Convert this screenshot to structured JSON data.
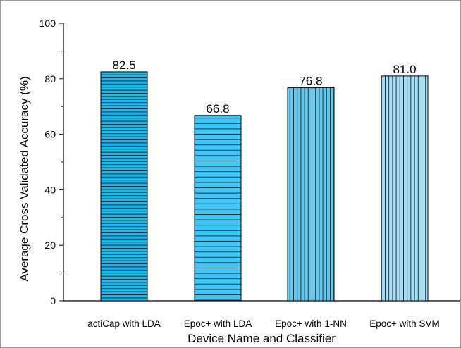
{
  "chart_data": {
    "type": "bar",
    "categories": [
      "actiCap with LDA",
      "Epoc+ with LDA",
      "Epoc+ with 1-NN",
      "Epoc+ with SVM"
    ],
    "values": [
      82.5,
      66.8,
      76.8,
      81.0
    ],
    "value_labels": [
      "82.5",
      "66.8",
      "76.8",
      "81.0"
    ],
    "xlabel": "Device Name and Classifier",
    "ylabel": "Average Cross Validated Accuracy (%)",
    "ylim": [
      0,
      100
    ],
    "yticks": [
      0,
      20,
      40,
      60,
      80,
      100
    ],
    "grid": false,
    "bar_colors": [
      "#1fb7ea",
      "#3ec5f5",
      "#66c8ec",
      "#a8def5"
    ],
    "bar_hatch": [
      "horizontal",
      "horizontal",
      "vertical",
      "vertical"
    ]
  }
}
